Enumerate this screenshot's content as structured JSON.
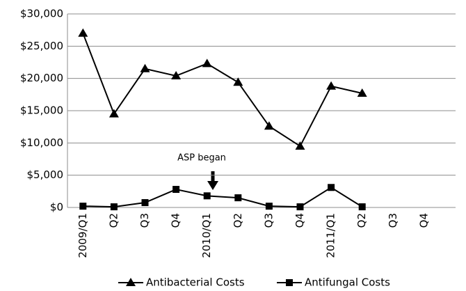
{
  "chart_data": {
    "type": "line",
    "categories": [
      "2009/Q1",
      "Q2",
      "Q3",
      "Q4",
      "2010/Q1",
      "Q2",
      "Q3",
      "Q4",
      "2011/Q1",
      "Q2",
      "Q3",
      "Q4"
    ],
    "series": [
      {
        "name": "Antibacterial Costs",
        "color": "#000000",
        "marker": "triangle",
        "values": [
          27000,
          14500,
          21500,
          20400,
          22300,
          19400,
          12600,
          9500,
          18800,
          17700,
          null,
          null
        ]
      },
      {
        "name": "Antifungal Costs",
        "color": "#000000",
        "marker": "square",
        "values": [
          200,
          100,
          750,
          2800,
          1800,
          1500,
          200,
          100,
          3100,
          100,
          null,
          null
        ]
      }
    ],
    "ylim": [
      0,
      30000
    ],
    "yticks": [
      {
        "value": 0,
        "label": "$0"
      },
      {
        "value": 5000,
        "label": "$5,000"
      },
      {
        "value": 10000,
        "label": "$10,000"
      },
      {
        "value": 15000,
        "label": "$15,000"
      },
      {
        "value": 20000,
        "label": "$20,000"
      },
      {
        "value": 25000,
        "label": "$25,000"
      },
      {
        "value": 30000,
        "label": "$30,000"
      }
    ],
    "grid": true,
    "legend": "bottom",
    "annotations": [
      "ASP began"
    ]
  }
}
